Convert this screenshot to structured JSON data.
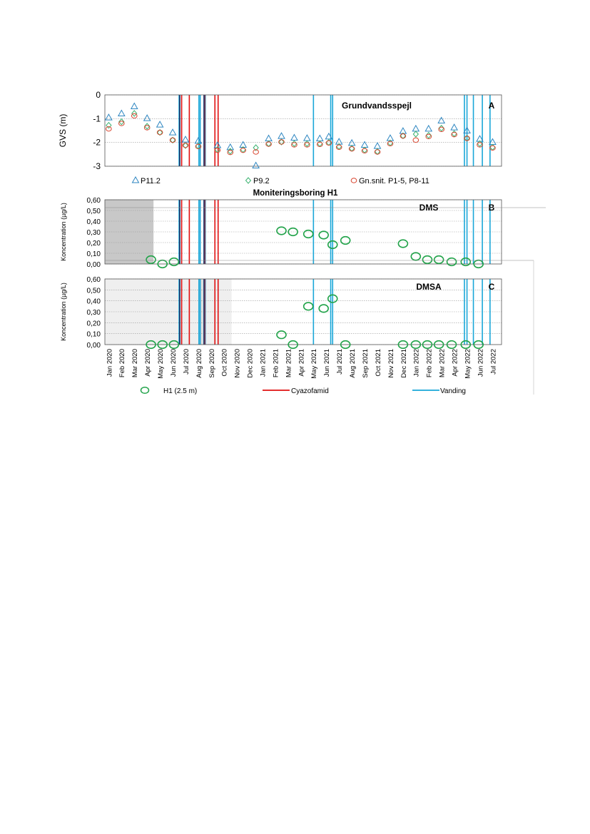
{
  "months": [
    "Jan 2020",
    "Feb 2020",
    "Mar 2020",
    "Apr 2020",
    "May 2020",
    "Jun 2020",
    "Jul 2020",
    "Aug 2020",
    "Sep 2020",
    "Oct 2020",
    "Nov 2020",
    "Dec 2020",
    "Jan 2021",
    "Feb 2021",
    "Mar 2021",
    "Apr 2021",
    "May 2021",
    "Jun 2021",
    "Jul 2021",
    "Aug 2021",
    "Sep 2021",
    "Oct 2021",
    "Nov 2021",
    "Dec 2021",
    "Jan 2022",
    "Feb 2022",
    "Mar 2022",
    "Apr 2022",
    "May 2022",
    "Jun 2022",
    "Jul 2022"
  ],
  "colors": {
    "p11": "#2e86c1",
    "p9": "#3cb371",
    "gn": "#d9442e",
    "h1": "#22a34a",
    "cyazofamid": "#e01010",
    "vanding": "#1aa7d8",
    "dark": "#1f3b6e",
    "shade_dark": "#c8c8c8",
    "shade_light": "#efefef"
  },
  "chart_data": [
    {
      "id": "A",
      "type": "scatter",
      "title": "Grundvandsspejl",
      "panel_letter": "A",
      "ylabel": "GVS (m)",
      "ylim": [
        -3,
        0
      ],
      "yticks": [
        "0",
        "-1",
        "-2",
        "-3"
      ],
      "grid": true,
      "series": [
        {
          "name": "P11.2",
          "marker": "triangle",
          "x": [
            0.3,
            1.3,
            2.3,
            3.3,
            4.3,
            5.3,
            6.3,
            7.3,
            8.8,
            9.8,
            10.8,
            11.8,
            12.8,
            13.8,
            14.8,
            15.8,
            16.8,
            17.5,
            18.3,
            19.3,
            20.3,
            21.3,
            22.3,
            23.3,
            24.3,
            25.3,
            26.3,
            27.3,
            28.3,
            29.3,
            30.3
          ],
          "y": [
            -0.95,
            -0.78,
            -0.48,
            -0.98,
            -1.25,
            -1.58,
            -1.88,
            -1.93,
            -2.12,
            -2.2,
            -2.1,
            -2.97,
            -1.83,
            -1.73,
            -1.8,
            -1.82,
            -1.83,
            -1.75,
            -1.97,
            -2.02,
            -2.1,
            -2.15,
            -1.82,
            -1.52,
            -1.42,
            -1.42,
            -1.08,
            -1.37,
            -1.5,
            -1.85,
            -1.98
          ]
        },
        {
          "name": "P9.2",
          "marker": "diamond",
          "x": [
            0.3,
            1.3,
            2.3,
            3.3,
            4.3,
            5.3,
            6.3,
            7.3,
            8.8,
            9.8,
            10.8,
            11.8,
            12.8,
            13.8,
            14.8,
            15.8,
            16.8,
            17.5,
            18.3,
            19.3,
            20.3,
            21.3,
            22.3,
            23.3,
            24.3,
            25.3,
            26.3,
            27.3,
            28.3,
            29.3,
            30.3
          ],
          "y": [
            -1.28,
            -1.13,
            -0.78,
            -1.32,
            -1.58,
            -1.9,
            -2.13,
            -2.15,
            -2.3,
            -2.37,
            -2.3,
            -2.22,
            -2.05,
            -1.98,
            -2.05,
            -2.05,
            -2.05,
            -2.0,
            -2.17,
            -2.25,
            -2.32,
            -2.38,
            -2.02,
            -1.72,
            -1.65,
            -1.7,
            -1.4,
            -1.63,
            -1.82,
            -2.05,
            -2.2
          ]
        },
        {
          "name": "Gn.snit. P1-5, P8-11",
          "marker": "circle",
          "x": [
            0.3,
            1.3,
            2.3,
            3.3,
            4.3,
            5.3,
            6.3,
            7.3,
            8.8,
            9.8,
            10.8,
            11.8,
            12.8,
            13.8,
            14.8,
            15.8,
            16.8,
            17.5,
            18.3,
            19.3,
            20.3,
            21.3,
            22.3,
            23.3,
            24.3,
            25.3,
            26.3,
            27.3,
            28.3,
            29.3,
            30.3
          ],
          "y": [
            -1.43,
            -1.2,
            -0.88,
            -1.38,
            -1.58,
            -1.9,
            -2.12,
            -2.17,
            -2.33,
            -2.42,
            -2.33,
            -2.4,
            -2.07,
            -1.98,
            -2.1,
            -2.1,
            -2.08,
            -2.02,
            -2.2,
            -2.27,
            -2.35,
            -2.4,
            -2.05,
            -1.73,
            -1.9,
            -1.75,
            -1.45,
            -1.67,
            -1.83,
            -2.1,
            -2.23
          ]
        }
      ]
    },
    {
      "id": "B",
      "type": "scatter",
      "title": "Moniteringsboring H1",
      "panel_label": "DMS",
      "panel_letter": "B",
      "ylabel": "Koncentration (µg/L)",
      "ylim": [
        0,
        0.6
      ],
      "yticks": [
        "0,00",
        "0,10",
        "0,20",
        "0,30",
        "0,40",
        "0,50",
        "0,60"
      ],
      "grid": true,
      "series": [
        {
          "name": "H1 (2.5 m)",
          "x": [
            3.6,
            4.5,
            5.4,
            13.8,
            14.7,
            15.9,
            17.1,
            17.8,
            18.8,
            23.3,
            24.3,
            25.2,
            26.1,
            27.1,
            28.2,
            29.2
          ],
          "y": [
            0.04,
            0.0,
            0.02,
            0.31,
            0.3,
            0.28,
            0.27,
            0.18,
            0.22,
            0.19,
            0.07,
            0.04,
            0.04,
            0.02,
            0.02,
            0.0
          ]
        }
      ]
    },
    {
      "id": "C",
      "type": "scatter",
      "panel_label": "DMSA",
      "panel_letter": "C",
      "ylabel": "Koncentration (µg/L)",
      "ylim": [
        0,
        0.6
      ],
      "yticks": [
        "0,00",
        "0,10",
        "0,20",
        "0,30",
        "0,40",
        "0,50",
        "0,60"
      ],
      "grid": true,
      "series": [
        {
          "name": "H1 (2.5 m)",
          "x": [
            3.6,
            4.5,
            5.4,
            13.8,
            14.7,
            15.9,
            17.1,
            17.8,
            18.8,
            23.3,
            24.3,
            25.2,
            26.1,
            27.1,
            28.2,
            29.2
          ],
          "y": [
            0.0,
            0.0,
            0.0,
            0.09,
            0.0,
            0.35,
            0.33,
            0.42,
            0.0,
            0.0,
            0.0,
            0.0,
            0.0,
            0.0,
            0.0,
            0.0
          ]
        }
      ]
    }
  ],
  "events": {
    "cyazofamid": [
      6.0,
      6.6,
      7.8,
      8.6,
      8.85
    ],
    "vanding": [
      5.8,
      7.35,
      7.45,
      7.85,
      16.3,
      17.65,
      17.8,
      28.1,
      28.3,
      28.8,
      29.5,
      30.1
    ],
    "dark": [
      5.85,
      7.75
    ]
  },
  "shading": {
    "b_dark": [
      0,
      3.8
    ],
    "c_light": [
      0,
      9.9
    ],
    "c_mid": [
      7.3,
      7.8
    ]
  },
  "legend_a": [
    "P11.2",
    "P9.2",
    "Gn.snit. P1-5, P8-11"
  ],
  "legend_bottom": [
    "H1 (2.5 m)",
    "Cyazofamid",
    "Vanding"
  ]
}
